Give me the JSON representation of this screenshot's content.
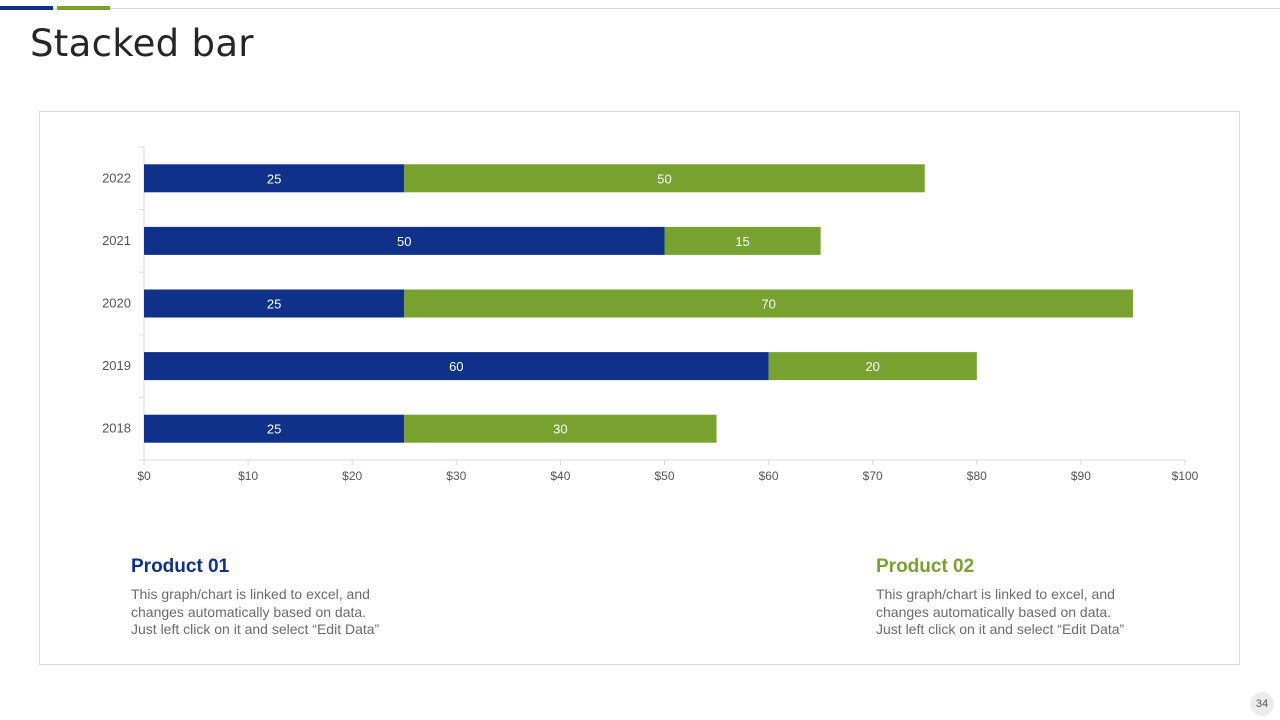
{
  "slide": {
    "title": "Stacked bar",
    "page_number": "34"
  },
  "colors": {
    "product_01": "#0f3189",
    "product_02": "#78a22f",
    "axis_text": "#555555",
    "bar_label": "#ffffff"
  },
  "chart_data": {
    "type": "bar",
    "orientation": "horizontal",
    "stacked": true,
    "categories": [
      "2022",
      "2021",
      "2020",
      "2019",
      "2018"
    ],
    "series": [
      {
        "name": "Product 01",
        "values": [
          25,
          50,
          25,
          60,
          25
        ]
      },
      {
        "name": "Product 02",
        "values": [
          50,
          15,
          70,
          20,
          30
        ]
      }
    ],
    "xlim": [
      0,
      100
    ],
    "xticks": [
      0,
      10,
      20,
      30,
      40,
      50,
      60,
      70,
      80,
      90,
      100
    ],
    "xtick_labels": [
      "$0",
      "$10",
      "$20",
      "$30",
      "$40",
      "$50",
      "$60",
      "$70",
      "$80",
      "$90",
      "$100"
    ],
    "title": "",
    "xlabel": "",
    "ylabel": "",
    "grid": false,
    "data_labels": true
  },
  "legend": {
    "product_01": {
      "title": "Product 01",
      "lines": [
        "This graph/chart is linked to excel, and",
        "changes automatically based on data.",
        "Just left click on it and select “Edit Data”"
      ]
    },
    "product_02": {
      "title": "Product 02",
      "lines": [
        "This graph/chart is linked to excel, and",
        "changes automatically based on data.",
        "Just left click on it and select “Edit Data”"
      ]
    }
  }
}
